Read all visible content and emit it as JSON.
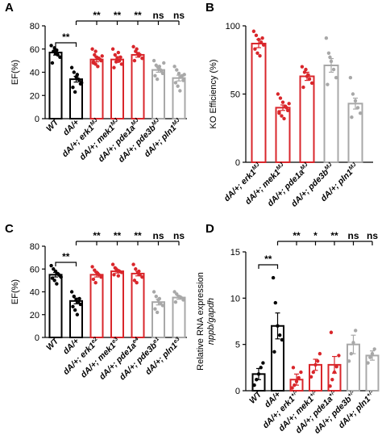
{
  "colors": {
    "black": "#000000",
    "red": "#d9262b",
    "gray": "#a8a8a8"
  },
  "chart_data": [
    {
      "panel": "A",
      "type": "bar",
      "ylabel": "EF(%)",
      "ylim": [
        0,
        80
      ],
      "yticks": [
        "0",
        "20",
        "40",
        "60",
        "80"
      ],
      "categories": [
        "WT",
        "dA/+",
        "dA/+; erk1MJ",
        "dA/+; mek1MJ",
        "dA/+; pde1aMJ",
        "dA/+; pde3bMJ",
        "dA/+; pln1MJ"
      ],
      "cat_labels": [
        {
          "main": "WT",
          "sup": ""
        },
        {
          "main": "dA/+",
          "sup": ""
        },
        {
          "main": "dA/+; erk1",
          "sup": "MJ"
        },
        {
          "main": "dA/+; mek1",
          "sup": "MJ"
        },
        {
          "main": "dA/+; pde1a",
          "sup": "MJ"
        },
        {
          "main": "dA/+; pde3b",
          "sup": "MJ"
        },
        {
          "main": "dA/+; pln1",
          "sup": "MJ"
        }
      ],
      "colors": [
        "black",
        "black",
        "red",
        "red",
        "red",
        "gray",
        "gray"
      ],
      "values": [
        57,
        34,
        51,
        51,
        55,
        42,
        35
      ],
      "errors": [
        2.2,
        2.5,
        2,
        2.5,
        2,
        2,
        2.5
      ],
      "points": [
        [
          63,
          58,
          56,
          55,
          53,
          48,
          61,
          59
        ],
        [
          44,
          40,
          36,
          34,
          30,
          27,
          23,
          38,
          33,
          31
        ],
        [
          60,
          55,
          53,
          52,
          50,
          48,
          47,
          45,
          51,
          54,
          49,
          58
        ],
        [
          60,
          55,
          52,
          50,
          47,
          44,
          49,
          57,
          53
        ],
        [
          62,
          58,
          56,
          55,
          52,
          50,
          60,
          54
        ],
        [
          50,
          46,
          44,
          42,
          39,
          37,
          34,
          45,
          41,
          48
        ],
        [
          45,
          42,
          39,
          36,
          33,
          31,
          28,
          24,
          37,
          38
        ]
      ],
      "sig_wt": "**",
      "sig_top": [
        "**",
        "**",
        "**",
        "ns",
        "ns"
      ]
    },
    {
      "panel": "B",
      "type": "bar",
      "ylabel": "KO Efficiency  (%)",
      "ylim": [
        0,
        100
      ],
      "yticks": [
        "0",
        "50",
        "100"
      ],
      "categories": [
        "dA/+; erk1MJ",
        "dA/+; mek1MJ",
        "dA/+; pde1aMJ",
        "dA/+; pde3bMJ",
        "dA/+; pln1MJ"
      ],
      "cat_labels": [
        {
          "main": "dA/+; erk1",
          "sup": "MJ"
        },
        {
          "main": "dA/+; mek1",
          "sup": "MJ"
        },
        {
          "main": "dA/+; pde1a",
          "sup": "MJ"
        },
        {
          "main": "dA/+; pde3b",
          "sup": "MJ"
        },
        {
          "main": "dA/+; pln1",
          "sup": "MJ"
        }
      ],
      "colors": [
        "red",
        "red",
        "red",
        "gray",
        "gray"
      ],
      "values": [
        87,
        40,
        63,
        71,
        43
      ],
      "errors": [
        3,
        2,
        3,
        5,
        4
      ],
      "points": [
        [
          96,
          93,
          90,
          88,
          86,
          83,
          80,
          78,
          91
        ],
        [
          50,
          47,
          44,
          41,
          38,
          36,
          34,
          32,
          40,
          43,
          37
        ],
        [
          70,
          66,
          63,
          61,
          58,
          55,
          68,
          64
        ],
        [
          91,
          80,
          74,
          68,
          62,
          57,
          77
        ],
        [
          62,
          50,
          45,
          40,
          36,
          33
        ]
      ]
    },
    {
      "panel": "C",
      "type": "bar",
      "ylabel": "EF(%)",
      "ylim": [
        0,
        80
      ],
      "yticks": [
        "0",
        "20",
        "40",
        "60",
        "80"
      ],
      "categories": [
        "WT",
        "dA/+",
        "dA/+; erk1e2",
        "dA/+; mek1e3",
        "dA/+; pde1ae4",
        "dA/+; pde3be1",
        "dA/+; pln1e3"
      ],
      "cat_labels": [
        {
          "main": "WT",
          "sup": ""
        },
        {
          "main": "dA/+",
          "sup": ""
        },
        {
          "main": "dA/+; erk1",
          "sup": "e2"
        },
        {
          "main": "dA/+; mek1",
          "sup": "e3"
        },
        {
          "main": "dA/+; pde1a",
          "sup": "e4"
        },
        {
          "main": "dA/+; pde3b",
          "sup": "e1"
        },
        {
          "main": "dA/+; pln1",
          "sup": "e3"
        }
      ],
      "colors": [
        "black",
        "black",
        "red",
        "red",
        "red",
        "gray",
        "gray"
      ],
      "values": [
        55,
        32,
        55,
        58,
        56,
        31,
        35
      ],
      "errors": [
        2,
        2.5,
        2,
        1.5,
        2,
        2.5,
        1.5
      ],
      "points": [
        [
          63,
          60,
          58,
          56,
          54,
          52,
          50,
          47,
          55,
          53
        ],
        [
          40,
          36,
          33,
          31,
          29,
          27,
          24,
          20,
          34
        ],
        [
          62,
          59,
          57,
          55,
          53,
          51,
          48,
          56
        ],
        [
          64,
          61,
          59,
          58,
          57,
          55,
          60,
          54
        ],
        [
          64,
          60,
          57,
          55,
          53,
          50,
          48,
          58
        ],
        [
          40,
          36,
          33,
          30,
          28,
          25,
          22,
          34
        ],
        [
          40,
          38,
          36,
          35,
          33,
          31
        ]
      ],
      "sig_wt": "**",
      "sig_top": [
        "**",
        "**",
        "**",
        "ns",
        "ns"
      ]
    },
    {
      "panel": "D",
      "type": "bar",
      "ylabel": "Relative RNA expression",
      "ylabel2": "nppb/gapdh",
      "ylim": [
        0,
        15
      ],
      "yticks": [
        "0",
        "5",
        "10",
        "15"
      ],
      "categories": [
        "WT",
        "dA/+",
        "dA/+; erk1+/-",
        "dA/+; mek1+/-",
        "dA/+; pde1a+/-",
        "dA/+; pde3b+/-",
        "dA/+; pln1+/-"
      ],
      "cat_labels": [
        {
          "main": "WT",
          "sup": ""
        },
        {
          "main": "dA/+",
          "sup": ""
        },
        {
          "main": "dA/+; erk1",
          "sup": "+/-"
        },
        {
          "main": "dA/+; mek1",
          "sup": "+/-"
        },
        {
          "main": "dA/+; pde1a",
          "sup": "+/-"
        },
        {
          "main": "dA/+; pde3b",
          "sup": "+/-"
        },
        {
          "main": "dA/+; pln1",
          "sup": "+/-"
        }
      ],
      "colors": [
        "black",
        "black",
        "red",
        "red",
        "red",
        "gray",
        "gray"
      ],
      "values": [
        1.8,
        7,
        1.2,
        2.8,
        2.8,
        5,
        3.8
      ],
      "errors": [
        0.6,
        1.4,
        0.6,
        0.6,
        0.9,
        1,
        0.5
      ],
      "points": [
        [
          0.6,
          1.2,
          1.8,
          2.5,
          3
        ],
        [
          12.2,
          9.5,
          7,
          6,
          5.5,
          4.2
        ],
        [
          0.3,
          0.6,
          1,
          1.4,
          2,
          2.5
        ],
        [
          1.5,
          2,
          2.8,
          3.2,
          4
        ],
        [
          0.5,
          1.2,
          2,
          2.6,
          3.8,
          6.3
        ],
        [
          3.2,
          4,
          5.2,
          6.5
        ],
        [
          3,
          3.6,
          4,
          4.5
        ]
      ],
      "sig_wt": "**",
      "sig_top": [
        "**",
        "*",
        "**",
        "ns",
        "ns"
      ]
    }
  ]
}
